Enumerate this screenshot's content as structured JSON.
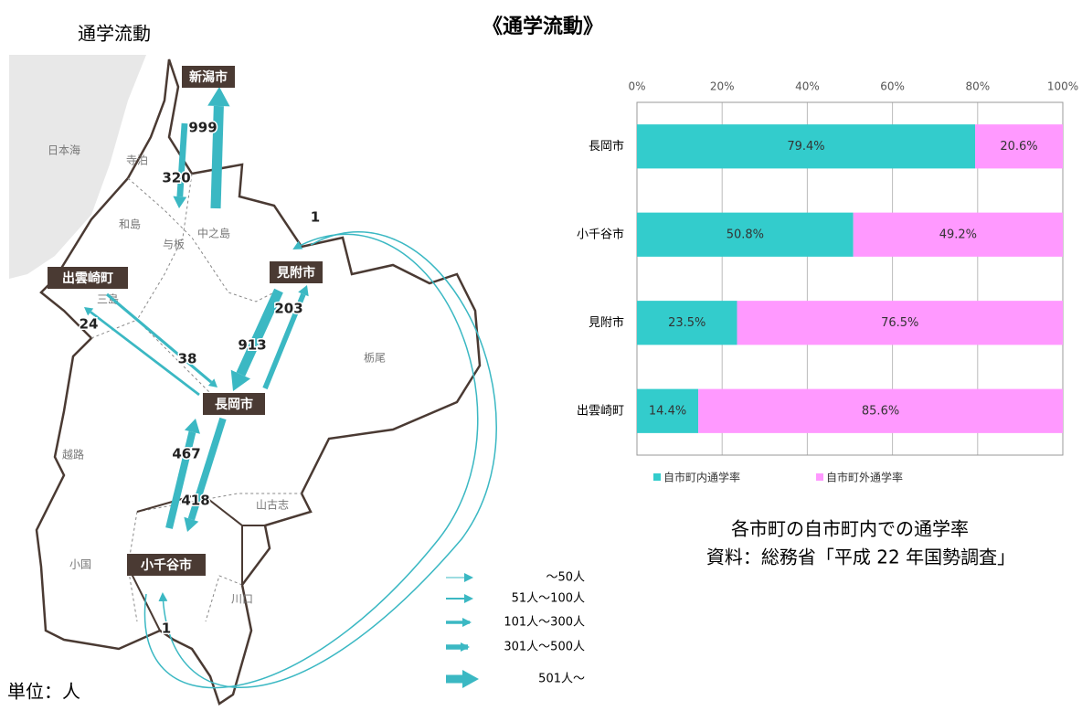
{
  "title": "《通学流動》",
  "map": {
    "title": "通学流動",
    "unit_note": "単位：人",
    "places": [
      "日本海",
      "寺泊",
      "和島",
      "与板",
      "中之島",
      "三島",
      "栃尾",
      "越路",
      "山古志",
      "小国",
      "川口"
    ],
    "cities": [
      "新潟市",
      "見附市",
      "出雲崎町",
      "長岡市",
      "小千谷市"
    ],
    "flows": [
      999,
      320,
      913,
      203,
      24,
      38,
      467,
      418,
      1,
      1
    ],
    "legend": [
      "～50人",
      "51人～100人",
      "101人～300人",
      "301人～500人",
      "501人～"
    ]
  },
  "chart_data": {
    "type": "bar",
    "orientation": "horizontal",
    "stacked": true,
    "categories": [
      "長岡市",
      "小千谷市",
      "見附市",
      "出雲崎町"
    ],
    "series": [
      {
        "name": "自市町内通学率",
        "color": "#33cccc",
        "values": [
          79.4,
          50.8,
          23.5,
          14.4
        ],
        "value_labels": [
          "79.4%",
          "50.8%",
          "23.5%",
          "14.4%"
        ]
      },
      {
        "name": "自市町外通学率",
        "color": "#ff99ff",
        "values": [
          20.6,
          49.2,
          76.5,
          85.6
        ],
        "value_labels": [
          "20.6%",
          "49.2%",
          "76.5%",
          "85.6%"
        ]
      }
    ],
    "xlim": [
      0,
      100
    ],
    "xticks": [
      {
        "value": 0,
        "label": "0%"
      },
      {
        "value": 20,
        "label": "20%"
      },
      {
        "value": 40,
        "label": "40%"
      },
      {
        "value": 60,
        "label": "60%"
      },
      {
        "value": 80,
        "label": "80%"
      },
      {
        "value": 100,
        "label": "100%"
      }
    ],
    "grid": true,
    "legend": "bottom",
    "caption": [
      "各市町の自市町内での通学率",
      "資料：総務省「平成 22 年国勢調査」"
    ]
  }
}
